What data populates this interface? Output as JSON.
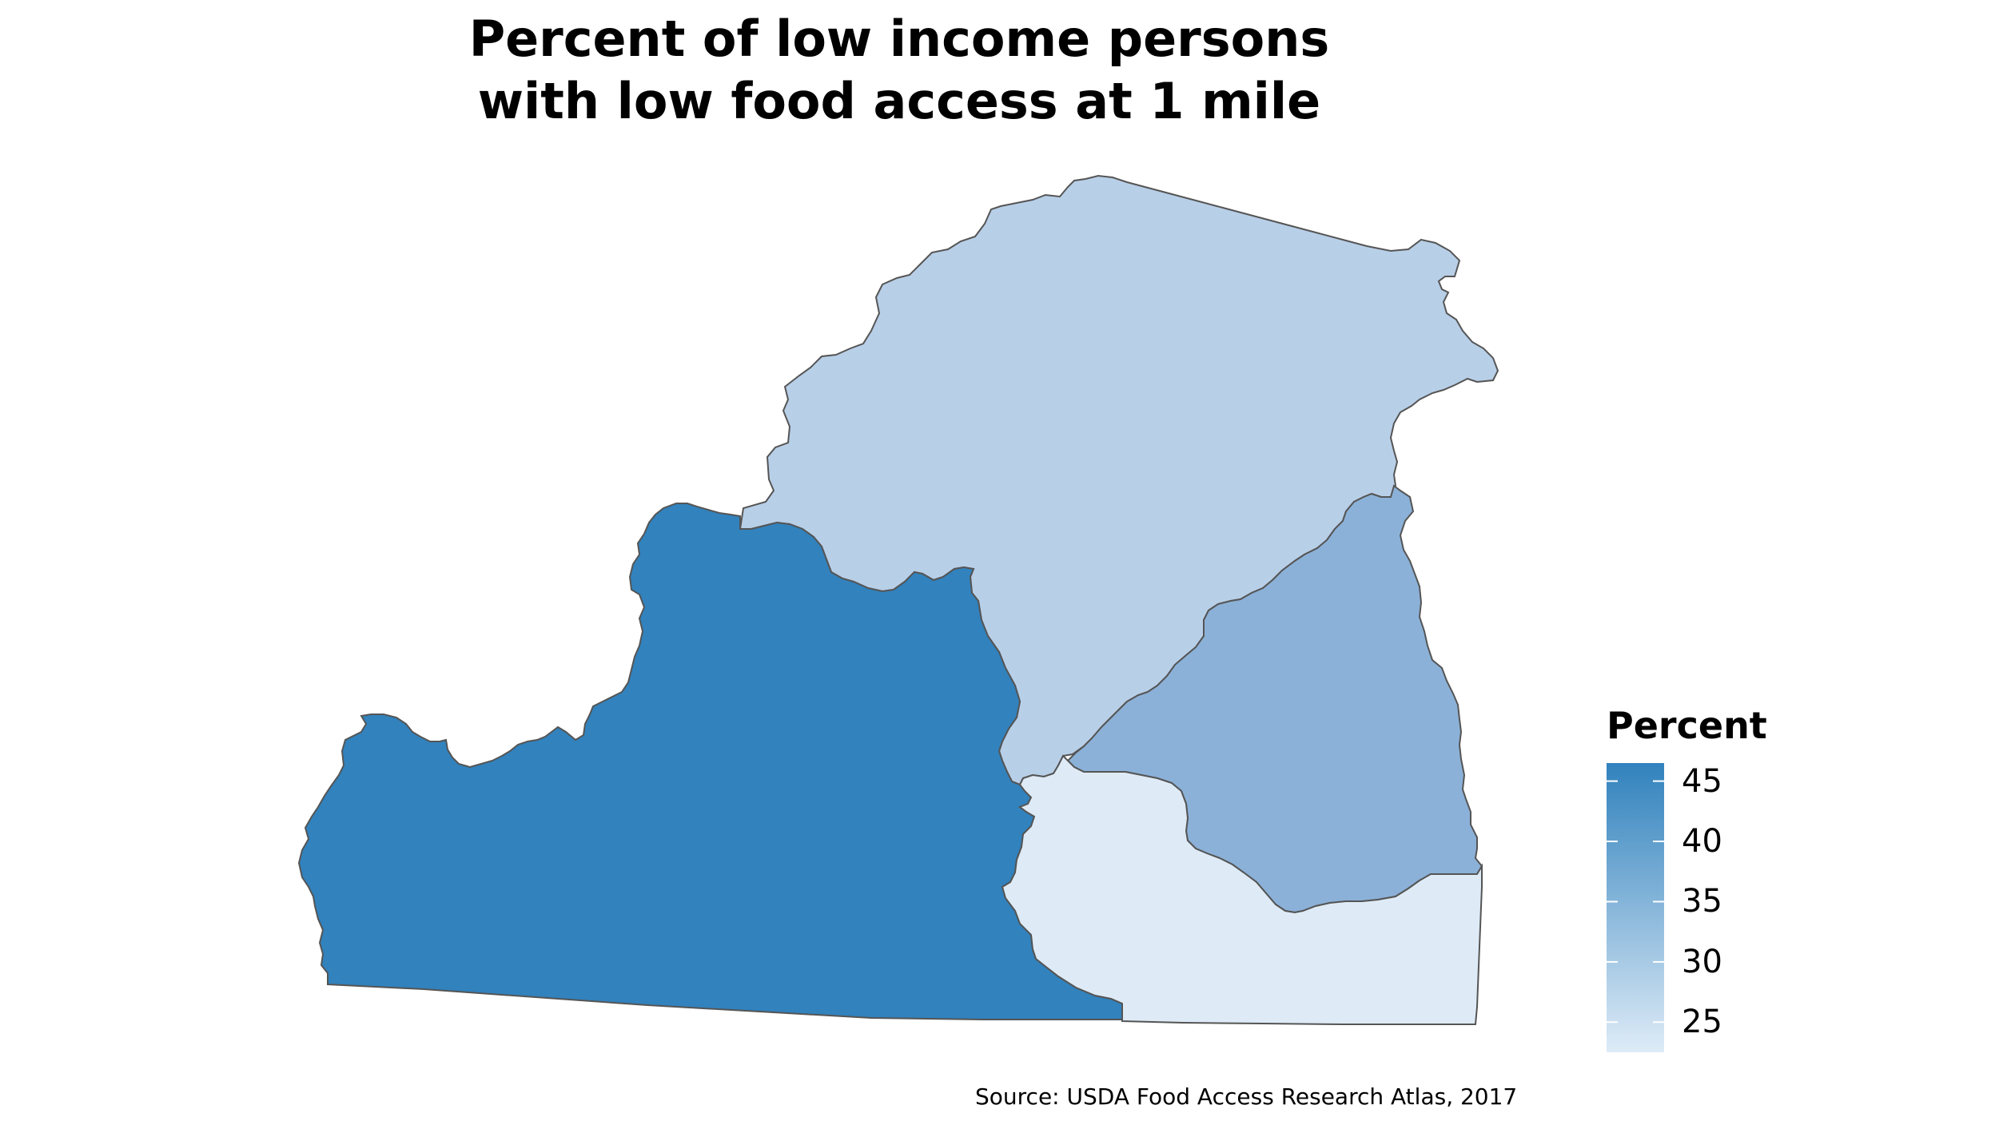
{
  "title": {
    "line1": "Percent of low income persons",
    "line2": "with low food access at 1 mile"
  },
  "legend": {
    "title": "Percent",
    "min": 22.5,
    "max": 46.5,
    "ticks": [
      {
        "value": 45,
        "label": "45"
      },
      {
        "value": 40,
        "label": "40"
      },
      {
        "value": 35,
        "label": "35"
      },
      {
        "value": 30,
        "label": "30"
      },
      {
        "value": 25,
        "label": "25"
      }
    ],
    "color_low": "#deebf7",
    "color_high": "#3182bd"
  },
  "regions": [
    {
      "id": "west",
      "value": 46.5,
      "color": "#3182bd"
    },
    {
      "id": "north",
      "value": 31.2,
      "color": "#b8cfe8"
    },
    {
      "id": "east",
      "value": 36.5,
      "color": "#8bb1d8"
    },
    {
      "id": "southeast",
      "value": 23.0,
      "color": "#deebf7"
    }
  ],
  "border_color": "#555555",
  "caption": "Source: USDA Food Access Research Atlas, 2017"
}
